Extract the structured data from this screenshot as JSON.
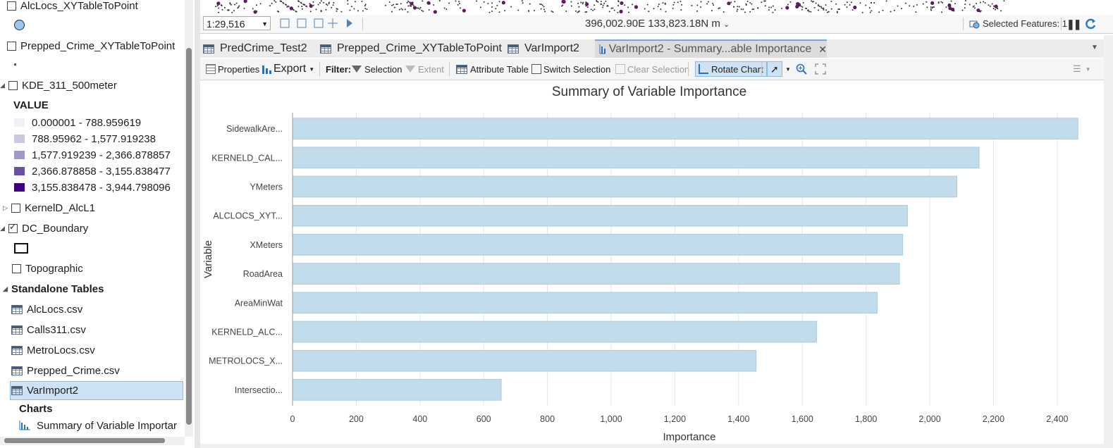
{
  "contents": {
    "layers": [
      {
        "name": "AlcLocs_XYTableToPoint",
        "checked": false
      },
      {
        "name": "Prepped_Crime_XYTableToPoint",
        "checked": false
      },
      {
        "name": "KDE_311_500meter",
        "checked": false
      },
      {
        "name": "KernelD_AlcL1",
        "checked": false
      },
      {
        "name": "DC_Boundary",
        "checked": true
      },
      {
        "name": "Topographic",
        "checked": false
      }
    ],
    "legend_header": "VALUE",
    "legend": [
      {
        "label": "0.000001 - 788.959619",
        "color": "#f2f0f7"
      },
      {
        "label": "788.95962 - 1,577.919238",
        "color": "#cbc9e2"
      },
      {
        "label": "1,577.919239 - 2,366.878857",
        "color": "#9e9ac8"
      },
      {
        "label": "2,366.878858 - 3,155.838477",
        "color": "#6a51a3"
      },
      {
        "label": "3,155.838478 - 3,944.798096",
        "color": "#3f007d"
      }
    ],
    "standalone_tables_header": "Standalone Tables",
    "tables": [
      "AlcLocs.csv",
      "Calls311.csv",
      "MetroLocs.csv",
      "Prepped_Crime.csv",
      "VarImport2"
    ],
    "selected_table": "VarImport2",
    "charts_header": "Charts",
    "chart_item": "Summary of Variable Importar"
  },
  "statusbar": {
    "scale": "1:29,516",
    "coordinates": "396,002.90E 133,823.18N m",
    "selected_features": "Selected Features: 1"
  },
  "tabs": [
    {
      "label": "PredCrime_Test2",
      "active": false
    },
    {
      "label": "Prepped_Crime_XYTableToPoint",
      "active": false
    },
    {
      "label": "VarImport2",
      "active": false
    },
    {
      "label": "VarImport2 - Summary...able Importance",
      "active": true
    }
  ],
  "toolbar": {
    "properties": "Properties",
    "export": "Export",
    "filter": "Filter:",
    "selection": "Selection",
    "extent": "Extent",
    "attribute_table": "Attribute Table",
    "switch_selection": "Switch Selection",
    "clear_selection": "Clear Selection",
    "rotate_chart": "Rotate Chart"
  },
  "chart_data": {
    "type": "bar",
    "orientation": "horizontal",
    "title": "Summary of Variable Importance",
    "xlabel": "Importance",
    "ylabel": "Variable",
    "categories": [
      "SidewalkAre...",
      "KERNELD_CAL...",
      "YMeters",
      "ALCLOCS_XYT...",
      "XMeters",
      "RoadArea",
      "AreaMinWat",
      "KERNELD_ALC...",
      "METROLOCS_X...",
      "Intersectio..."
    ],
    "values": [
      2465,
      2155,
      2085,
      1930,
      1915,
      1905,
      1835,
      1645,
      1455,
      655
    ],
    "xlim": [
      0,
      2480
    ],
    "xticks": [
      "0",
      "200",
      "400",
      "600",
      "800",
      "1,000",
      "1,200",
      "1,400",
      "1,600",
      "1,800",
      "2,000",
      "2,200",
      "2,400"
    ],
    "bar_color": "#c2dceb",
    "bar_stroke": "#a9cde2",
    "grid": true
  }
}
